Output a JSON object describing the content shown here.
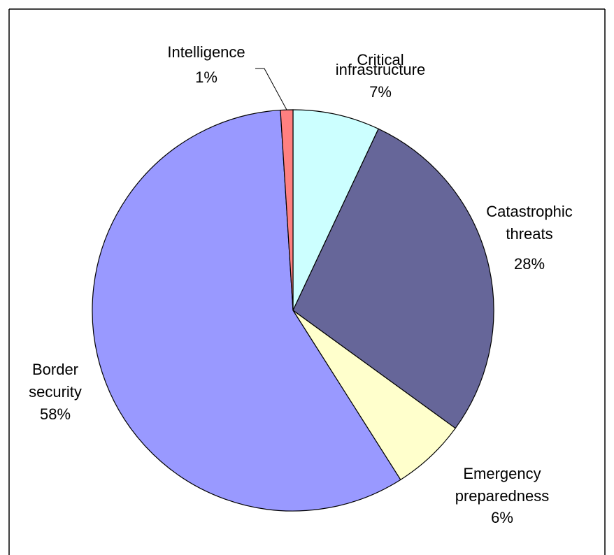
{
  "chart_data": {
    "type": "pie",
    "title": "",
    "series": [
      {
        "values": [
          7,
          28,
          6,
          58,
          1
        ]
      }
    ],
    "slices": [
      {
        "name": "Critical infrastructure",
        "label_lines": [
          "Critical",
          "infrastructure",
          "7%"
        ],
        "value": 7,
        "color": "#ccffff"
      },
      {
        "name": "Catastrophic threats",
        "label_lines": [
          "Catastrophic",
          "threats",
          "28%"
        ],
        "value": 28,
        "color": "#666699"
      },
      {
        "name": "Emergency preparedness",
        "label_lines": [
          "Emergency",
          "preparedness",
          "6%"
        ],
        "value": 6,
        "color": "#ffffcc"
      },
      {
        "name": "Border security",
        "label_lines": [
          "Border",
          "security",
          "58%"
        ],
        "value": 58,
        "color": "#9999ff"
      },
      {
        "name": "Intelligence",
        "label_lines": [
          "Intelligence",
          "1%"
        ],
        "value": 1,
        "color": "#ff8080"
      }
    ],
    "legend": "none"
  }
}
